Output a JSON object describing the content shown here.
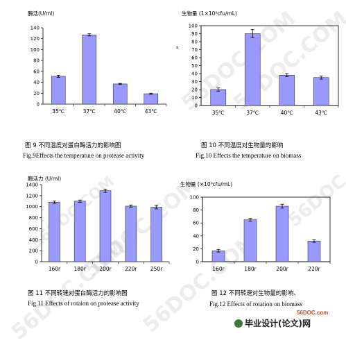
{
  "colors": {
    "bar_fill": "#9999ff",
    "bar_stroke": "#333333",
    "site_text": "#d9402a"
  },
  "watermarks": [
    "56DOC.COM",
    "56DOC.COM",
    "56DOC.COM",
    "56DOC.COM",
    "56DOC.COM",
    "56DOC.COM",
    "56DOC.COM"
  ],
  "site_link": "56DOC.com",
  "site_logo": "毕业设计(论文)网",
  "chart_data": [
    {
      "type": "bar",
      "ylabel": "酶活(U/ml)",
      "categories": [
        "35℃",
        "37℃",
        "40℃",
        "43℃"
      ],
      "values": [
        51,
        127,
        37,
        19
      ],
      "errors": [
        2,
        2,
        1,
        1
      ],
      "ylim": [
        0,
        140
      ],
      "yticks": [
        0,
        20,
        40,
        60,
        80,
        100,
        120,
        140
      ],
      "caption_cn": "图 9  不同温度对蛋白酶活力的影响图",
      "caption_en": "Fig.9Effects the temperature on protease activity"
    },
    {
      "type": "bar",
      "ylabel": "生物量 (1×10⁹cfu/mL)",
      "categories": [
        "35℃",
        "37℃",
        "40℃",
        "43℃"
      ],
      "values": [
        20,
        90,
        38,
        35
      ],
      "errors": [
        2,
        5,
        2,
        2
      ],
      "ylim": [
        0,
        100
      ],
      "yticks": [
        0,
        10,
        20,
        30,
        40,
        50,
        60,
        70,
        80,
        90,
        100
      ],
      "side_mark": "s",
      "caption_cn": "图 10  不同温度对生物量的影响",
      "caption_en": "Fig.10 Effects the temperature on biomass"
    },
    {
      "type": "bar",
      "ylabel": "酶活力 (U/ml)",
      "categories": [
        "160r",
        "180r",
        "200r",
        "220r",
        "250r"
      ],
      "values": [
        1080,
        1100,
        1290,
        1010,
        990
      ],
      "errors": [
        20,
        20,
        30,
        20,
        30
      ],
      "ylim": [
        0,
        1400
      ],
      "yticks": [
        0,
        200,
        400,
        600,
        800,
        1000,
        1200,
        1400
      ],
      "caption_cn": "图 11  不同转速对蛋白酶活力的影响图",
      "caption_en": "Fig.11 Effects of rotaion on protease activity"
    },
    {
      "type": "bar",
      "ylabel": "生物量 (×10⁹cfu/mL)",
      "categories": [
        "160r",
        "180r",
        "200r",
        "220r"
      ],
      "values": [
        17,
        65,
        86,
        32
      ],
      "errors": [
        2,
        2,
        3,
        2
      ],
      "ylim": [
        0,
        100
      ],
      "yticks": [
        0,
        20,
        40,
        60,
        80,
        100
      ],
      "caption_cn": "图 12  不同转速对生物量的影响、",
      "caption_en": "Fig.12 Effects of rotation on biomass"
    }
  ]
}
